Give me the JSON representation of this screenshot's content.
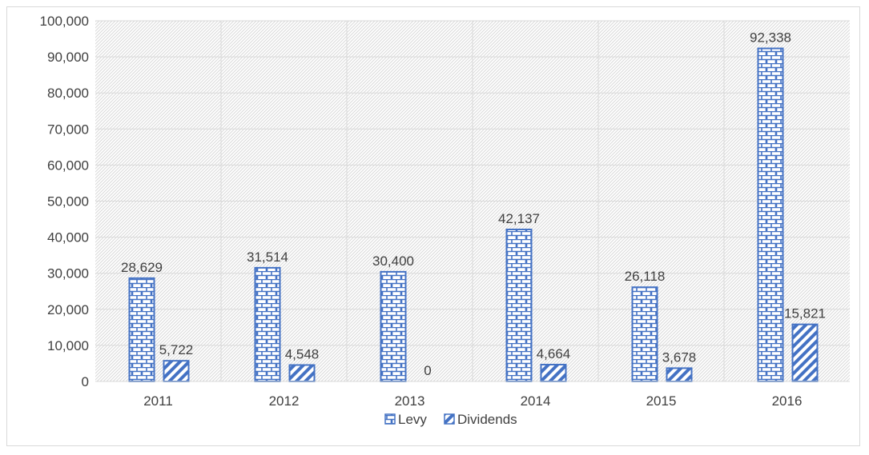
{
  "chart_data": {
    "type": "bar",
    "title": "",
    "xlabel": "",
    "ylabel": "",
    "categories": [
      "2011",
      "2012",
      "2013",
      "2014",
      "2015",
      "2016"
    ],
    "series": [
      {
        "name": "Levy",
        "values": [
          28629,
          31514,
          30400,
          42137,
          26118,
          92338
        ],
        "labels": [
          "28,629",
          "31,514",
          "30,400",
          "42,137",
          "26,118",
          "92,338"
        ],
        "pattern": "brick",
        "color": "#4472c4"
      },
      {
        "name": "Dividends",
        "values": [
          5722,
          4548,
          0,
          4664,
          3678,
          15821
        ],
        "labels": [
          "5,722",
          "4,548",
          "0",
          "4,664",
          "3,678",
          "15,821"
        ],
        "pattern": "diagonal-stripes",
        "color": "#4472c4"
      }
    ],
    "ylim": [
      0,
      100000
    ],
    "yticks": [
      0,
      10000,
      20000,
      30000,
      40000,
      50000,
      60000,
      70000,
      80000,
      90000,
      100000
    ],
    "ytick_labels": [
      "0",
      "10,000",
      "20,000",
      "30,000",
      "40,000",
      "50,000",
      "60,000",
      "70,000",
      "80,000",
      "90,000",
      "100,000"
    ],
    "grid": true,
    "plot_background": "light diagonal hatch",
    "legend_position": "bottom",
    "colors": {
      "series": "#4472c4",
      "grid": "#d9d9d9",
      "text": "#404040"
    }
  }
}
